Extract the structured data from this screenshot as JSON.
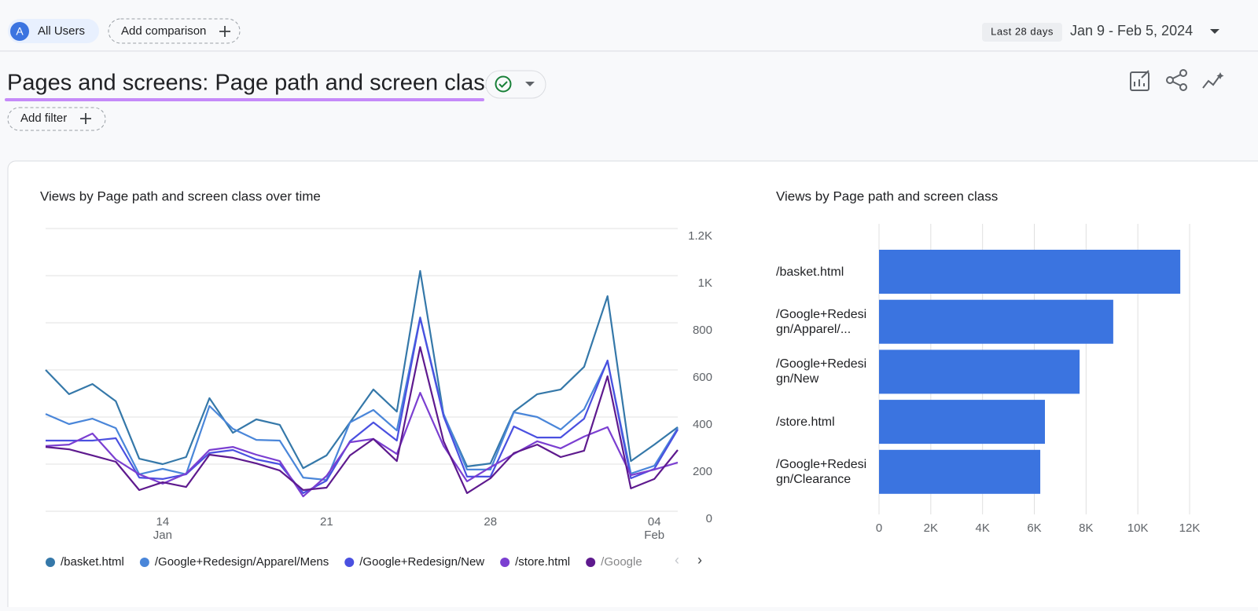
{
  "header": {
    "segment_badge": "A",
    "segment": "All Users",
    "add_comparison": "Add comparison",
    "date_preset": "Last 28 days",
    "date_range": "Jan 9 - Feb 5, 2024"
  },
  "report": {
    "title": "Pages and screens: Page path and screen class",
    "add_filter": "Add filter"
  },
  "chart_data": [
    {
      "type": "line",
      "title": "Views by Page path and screen class over time",
      "categories": [
        null,
        null,
        null,
        null,
        null,
        "14",
        null,
        null,
        null,
        null,
        null,
        null,
        "21",
        null,
        null,
        null,
        null,
        null,
        null,
        "28",
        null,
        null,
        null,
        null,
        null,
        null,
        "04",
        null
      ],
      "category_sublabels": [
        null,
        null,
        null,
        null,
        null,
        "Jan",
        null,
        null,
        null,
        null,
        null,
        null,
        null,
        null,
        null,
        null,
        null,
        null,
        null,
        null,
        null,
        null,
        null,
        null,
        null,
        null,
        "Feb",
        null
      ],
      "ylim": [
        0,
        1200
      ],
      "yticks": [
        0,
        200,
        400,
        600,
        800,
        {
          "value": 1000,
          "label": "1K"
        },
        {
          "value": 1200,
          "label": "1.2K"
        }
      ],
      "grid": true,
      "series": [
        {
          "name": "/basket.html",
          "color": "#3578a9",
          "values": [
            600,
            497,
            540,
            467,
            223,
            200,
            230,
            480,
            333,
            390,
            367,
            183,
            237,
            377,
            517,
            423,
            1020,
            410,
            190,
            203,
            423,
            497,
            517,
            613,
            913,
            213,
            283,
            357
          ]
        },
        {
          "name": "/Google+Redesign/Apparel/Mens",
          "color": "#4a86d9",
          "values": [
            413,
            370,
            393,
            353,
            157,
            180,
            157,
            447,
            350,
            303,
            300,
            143,
            133,
            377,
            430,
            343,
            823,
            413,
            177,
            177,
            420,
            400,
            347,
            433,
            637,
            160,
            193,
            353
          ]
        },
        {
          "name": "/Google+Redesign/New",
          "color": "#4a50e0",
          "values": [
            300,
            300,
            300,
            310,
            143,
            137,
            157,
            247,
            260,
            220,
            200,
            77,
            130,
            297,
            377,
            300,
            820,
            403,
            147,
            147,
            360,
            313,
            313,
            393,
            640,
            140,
            180,
            347
          ]
        },
        {
          "name": "/store.html",
          "color": "#7b3fd1",
          "values": [
            277,
            283,
            330,
            220,
            157,
            117,
            160,
            260,
            273,
            240,
            213,
            63,
            150,
            293,
            307,
            243,
            503,
            277,
            127,
            187,
            243,
            297,
            267,
            317,
            357,
            153,
            177,
            207
          ]
        },
        {
          "name": "/Google",
          "color": "#5e1a8e",
          "values": [
            273,
            263,
            237,
            210,
            90,
            123,
            103,
            240,
            227,
            203,
            173,
            90,
            100,
            237,
            307,
            213,
            697,
            297,
            77,
            140,
            247,
            283,
            230,
            257,
            573,
            97,
            137,
            260
          ]
        }
      ]
    },
    {
      "type": "bar",
      "orientation": "horizontal",
      "title": "Views by Page path and screen class",
      "categories": [
        "/basket.html",
        "/Google+Redesign/Apparel/...",
        "/Google+Redesign/New",
        "/store.html",
        "/Google+Redesign/Clearance"
      ],
      "values": [
        11640,
        9050,
        7750,
        6410,
        6230
      ],
      "color": "#3b74e0",
      "xlim": [
        0,
        12000
      ],
      "xticks": [
        0,
        {
          "value": 2000,
          "label": "2K"
        },
        {
          "value": 4000,
          "label": "4K"
        },
        {
          "value": 6000,
          "label": "6K"
        },
        {
          "value": 8000,
          "label": "8K"
        },
        {
          "value": 10000,
          "label": "10K"
        },
        {
          "value": 12000,
          "label": "12K"
        }
      ],
      "grid": true
    }
  ]
}
